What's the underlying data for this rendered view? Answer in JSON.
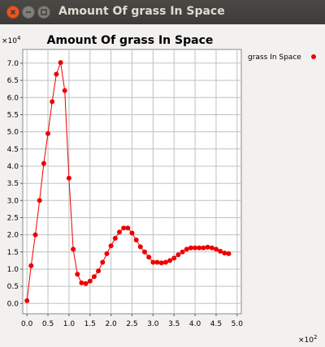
{
  "window": {
    "title": "Amount Of grass In Space",
    "close_icon": "close-icon",
    "minimize_icon": "minimize-icon",
    "maximize_icon": "maximize-icon"
  },
  "colors": {
    "series": "#ee0000",
    "plot_bg": "#ffffff",
    "grid": "#c0c0c0",
    "titlebar": "#3c3b37"
  },
  "chart_data": {
    "type": "line",
    "title": "Amount Of grass In Space",
    "xlabel": "",
    "ylabel": "",
    "x_multiplier": "×10",
    "x_multiplier_exp": "2",
    "y_multiplier": "×10",
    "y_multiplier_exp": "4",
    "xlim": [
      -0.1,
      5.1
    ],
    "ylim": [
      -0.3,
      7.4
    ],
    "x_ticks": [
      0.0,
      0.5,
      1.0,
      1.5,
      2.0,
      2.5,
      3.0,
      3.5,
      4.0,
      4.5,
      5.0
    ],
    "x_tick_labels": [
      "0.0",
      "0.5",
      "1.0",
      "1.5",
      "2.0",
      "2.5",
      "3.0",
      "3.5",
      "4.0",
      "4.5",
      "5.0"
    ],
    "y_ticks": [
      0.0,
      0.5,
      1.0,
      1.5,
      2.0,
      2.5,
      3.0,
      3.5,
      4.0,
      4.5,
      5.0,
      5.5,
      6.0,
      6.5,
      7.0
    ],
    "y_tick_labels": [
      "0.0",
      "0.5",
      "1.0",
      "1.5",
      "2.0",
      "2.5",
      "3.0",
      "3.5",
      "4.0",
      "4.5",
      "5.0",
      "5.5",
      "6.0",
      "6.5",
      "7.0"
    ],
    "grid": true,
    "legend_position": "right",
    "series": [
      {
        "name": "grass In Space",
        "marker": "circle",
        "x": [
          0.0,
          0.1,
          0.2,
          0.3,
          0.4,
          0.5,
          0.6,
          0.7,
          0.8,
          0.9,
          1.0,
          1.1,
          1.2,
          1.3,
          1.4,
          1.5,
          1.6,
          1.7,
          1.8,
          1.9,
          2.0,
          2.1,
          2.2,
          2.3,
          2.4,
          2.5,
          2.6,
          2.7,
          2.8,
          2.9,
          3.0,
          3.1,
          3.2,
          3.3,
          3.4,
          3.5,
          3.6,
          3.7,
          3.8,
          3.9,
          4.0,
          4.1,
          4.2,
          4.3,
          4.4,
          4.5,
          4.6,
          4.7,
          4.8
        ],
        "y": [
          0.08,
          1.1,
          2.0,
          3.0,
          4.08,
          4.95,
          5.88,
          6.68,
          7.02,
          6.2,
          3.65,
          1.58,
          0.85,
          0.6,
          0.58,
          0.65,
          0.78,
          0.95,
          1.2,
          1.45,
          1.68,
          1.9,
          2.08,
          2.2,
          2.2,
          2.05,
          1.85,
          1.65,
          1.5,
          1.35,
          1.2,
          1.2,
          1.18,
          1.2,
          1.25,
          1.32,
          1.42,
          1.5,
          1.58,
          1.62,
          1.62,
          1.62,
          1.62,
          1.64,
          1.62,
          1.58,
          1.52,
          1.47,
          1.45
        ]
      }
    ]
  }
}
